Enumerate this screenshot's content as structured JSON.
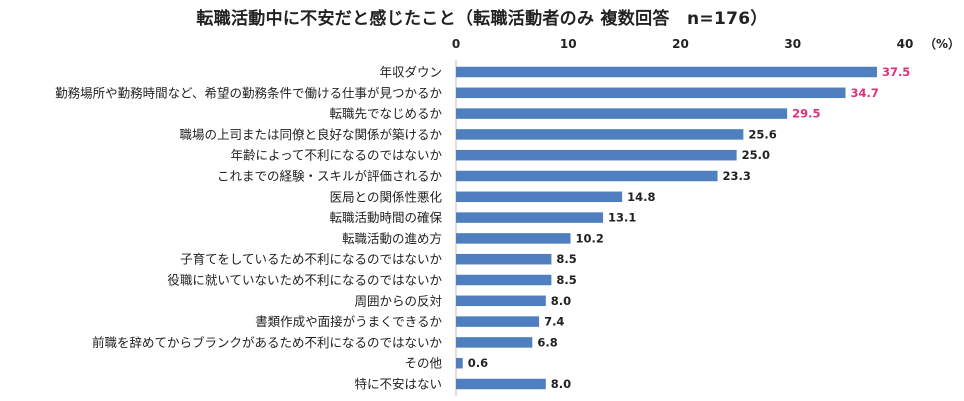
{
  "chart_data": {
    "type": "bar",
    "orientation": "horizontal",
    "title": "転職活動中に不安だと感じたこと（転職活動者のみ 複数回答　n=176）",
    "unit_label": "（%）",
    "xlim": [
      0,
      40
    ],
    "xticks": [
      0,
      10,
      20,
      30,
      40
    ],
    "categories": [
      "年収ダウン",
      "勤務場所や勤務時間など、希望の勤務条件で働ける仕事が見つかるか",
      "転職先でなじめるか",
      "職場の上司または同僚と良好な関係が築けるか",
      "年齢によって不利になるのではないか",
      "これまでの経験・スキルが評価されるか",
      "医局との関係性悪化",
      "転職活動時間の確保",
      "転職活動の進め方",
      "子育てをしているため不利になるのではないか",
      "役職に就いていないため不利になるのではないか",
      "周囲からの反対",
      "書類作成や面接がうまくできるか",
      "前職を辞めてからブランクがあるため不利になるのではないか",
      "その他",
      "特に不安はない"
    ],
    "values": [
      37.5,
      34.7,
      29.5,
      25.6,
      25.0,
      23.3,
      14.8,
      13.1,
      10.2,
      8.5,
      8.5,
      8.0,
      7.4,
      6.8,
      0.6,
      8.0
    ],
    "value_labels": [
      "37.5",
      "34.7",
      "29.5",
      "25.6",
      "25.0",
      "23.3",
      "14.8",
      "13.1",
      "10.2",
      "8.5",
      "8.5",
      "8.0",
      "7.4",
      "6.8",
      "0.6",
      "8.0"
    ],
    "highlight_top_n": 3,
    "colors": {
      "bar": "#4f7fbf",
      "highlight_label": "#e0307a",
      "label": "#222222"
    }
  }
}
